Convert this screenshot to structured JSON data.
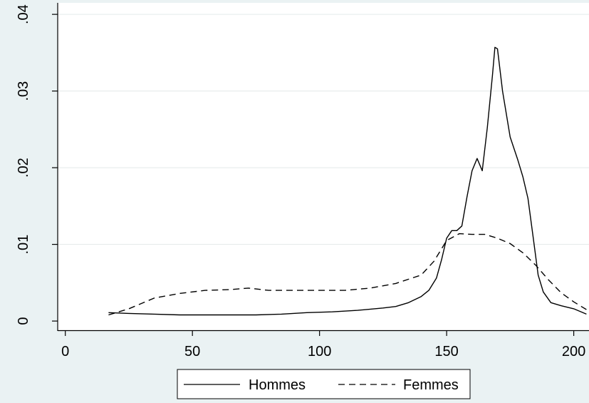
{
  "chart_data": {
    "type": "line",
    "title": "",
    "xlabel": "",
    "ylabel": "",
    "xlim": [
      -3,
      206
    ],
    "ylim": [
      -0.0012,
      0.0415
    ],
    "x_ticks": [
      0,
      50,
      100,
      150,
      200
    ],
    "x_tick_labels": [
      "0",
      "50",
      "100",
      "150",
      "200"
    ],
    "y_ticks": [
      0,
      0.01,
      0.02,
      0.03,
      0.04
    ],
    "y_tick_labels": [
      "0",
      ".01",
      ".02",
      ".03",
      ".04"
    ],
    "grid": "horizontal",
    "legend": {
      "placement": "bottom"
    },
    "colors": {
      "line": "#000000",
      "plot_bg": "#ffffff",
      "outer_bg": "#eaf2f3",
      "grid": "#e3eaea"
    },
    "series": [
      {
        "name": "Hommes",
        "style": "solid",
        "points": [
          [
            17,
            0.0011
          ],
          [
            25,
            0.001
          ],
          [
            35,
            0.0009
          ],
          [
            45,
            0.0008
          ],
          [
            55,
            0.0008
          ],
          [
            65,
            0.0008
          ],
          [
            75,
            0.0008
          ],
          [
            85,
            0.0009
          ],
          [
            95,
            0.0011
          ],
          [
            105,
            0.0012
          ],
          [
            115,
            0.0014
          ],
          [
            125,
            0.0017
          ],
          [
            130,
            0.0019
          ],
          [
            135,
            0.0024
          ],
          [
            140,
            0.0032
          ],
          [
            143,
            0.004
          ],
          [
            146,
            0.0056
          ],
          [
            148,
            0.008
          ],
          [
            150,
            0.0108
          ],
          [
            152,
            0.0118
          ],
          [
            154,
            0.0118
          ],
          [
            156,
            0.0124
          ],
          [
            158,
            0.0162
          ],
          [
            160,
            0.0196
          ],
          [
            162,
            0.0212
          ],
          [
            164,
            0.0196
          ],
          [
            166,
            0.0252
          ],
          [
            168,
            0.032
          ],
          [
            169,
            0.0357
          ],
          [
            170,
            0.0355
          ],
          [
            172,
            0.03
          ],
          [
            175,
            0.024
          ],
          [
            178,
            0.021
          ],
          [
            180,
            0.0188
          ],
          [
            182,
            0.016
          ],
          [
            184,
            0.011
          ],
          [
            186,
            0.006
          ],
          [
            188,
            0.0038
          ],
          [
            191,
            0.0024
          ],
          [
            195,
            0.002
          ],
          [
            200,
            0.0016
          ],
          [
            205,
            0.0009
          ]
        ]
      },
      {
        "name": "Femmes",
        "style": "dashed",
        "points": [
          [
            17,
            0.0008
          ],
          [
            25,
            0.0016
          ],
          [
            35,
            0.003
          ],
          [
            45,
            0.0036
          ],
          [
            55,
            0.004
          ],
          [
            65,
            0.0041
          ],
          [
            72,
            0.0043
          ],
          [
            80,
            0.004
          ],
          [
            90,
            0.004
          ],
          [
            100,
            0.004
          ],
          [
            110,
            0.004
          ],
          [
            120,
            0.0043
          ],
          [
            130,
            0.0049
          ],
          [
            140,
            0.006
          ],
          [
            145,
            0.0078
          ],
          [
            150,
            0.0105
          ],
          [
            155,
            0.0114
          ],
          [
            160,
            0.0113
          ],
          [
            165,
            0.0113
          ],
          [
            170,
            0.0108
          ],
          [
            175,
            0.0101
          ],
          [
            180,
            0.0089
          ],
          [
            185,
            0.0073
          ],
          [
            190,
            0.0054
          ],
          [
            195,
            0.0037
          ],
          [
            200,
            0.0025
          ],
          [
            205,
            0.0015
          ]
        ]
      }
    ]
  }
}
